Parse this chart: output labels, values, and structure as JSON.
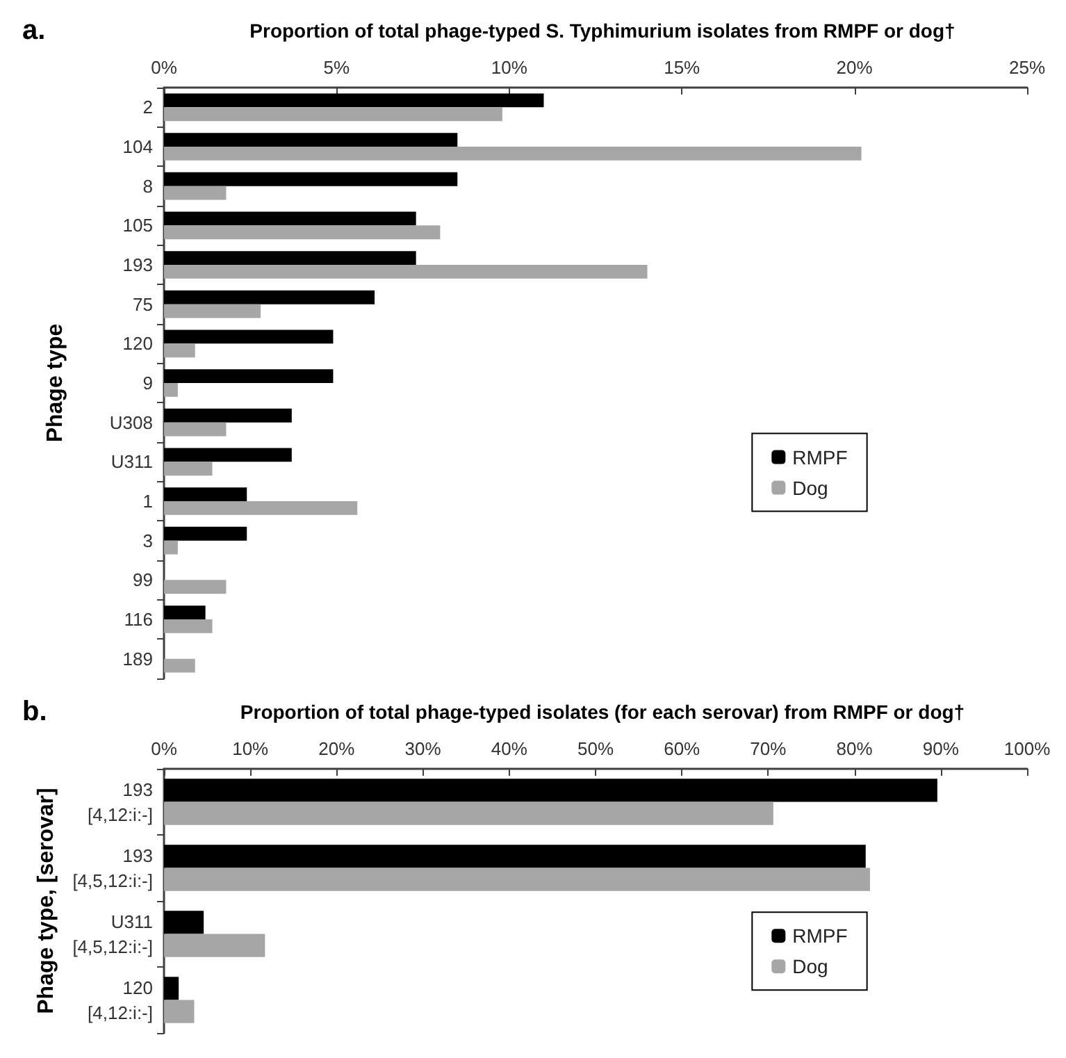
{
  "chart_data": [
    {
      "type": "bar",
      "orientation": "horizontal",
      "title": "Proportion of total phage-typed S. Typhimurium isolates from RMPF or dog†",
      "ylabel": "Phage type",
      "annotations": [
        "a."
      ],
      "categories": [
        "2",
        "104",
        "8",
        "105",
        "193",
        "75",
        "120",
        "9",
        "U308",
        "U311",
        "1",
        "3",
        "99",
        "116",
        "189"
      ],
      "series": [
        {
          "name": "RMPF",
          "color": "#000000",
          "values": [
            11.0,
            8.5,
            8.5,
            7.3,
            7.3,
            6.1,
            4.9,
            4.9,
            3.7,
            3.7,
            2.4,
            2.4,
            0,
            1.2,
            0
          ]
        },
        {
          "name": "Dog",
          "color": "#a6a6a6",
          "values": [
            9.8,
            20.2,
            1.8,
            8.0,
            14.0,
            2.8,
            0.9,
            0.4,
            1.8,
            1.4,
            5.6,
            0.4,
            1.8,
            1.4,
            0.9
          ]
        }
      ],
      "xlim": [
        0,
        25
      ],
      "xticks": [
        {
          "value": 0,
          "label": "0%"
        },
        {
          "value": 5,
          "label": "5%"
        },
        {
          "value": 10,
          "label": "10%"
        },
        {
          "value": 15,
          "label": "15%"
        },
        {
          "value": 20,
          "label": "20%"
        },
        {
          "value": 25,
          "label": "25%"
        }
      ],
      "grid": false,
      "legend": "right"
    },
    {
      "type": "bar",
      "orientation": "horizontal",
      "title": "Proportion of total phage-typed isolates (for each serovar) from RMPF or dog†",
      "ylabel": "Phage type, [serovar]",
      "annotations": [
        "b."
      ],
      "categories": [
        "193\n[4,12:i:-]",
        "193\n[4,5,12:i:-]",
        "U311\n[4,5,12:i:-]",
        "120\n[4,12:i:-]"
      ],
      "series": [
        {
          "name": "RMPF",
          "color": "#000000",
          "values": [
            89.6,
            81.3,
            4.6,
            1.7
          ]
        },
        {
          "name": "Dog",
          "color": "#a6a6a6",
          "values": [
            70.6,
            81.8,
            11.7,
            3.5
          ]
        }
      ],
      "xlim": [
        0,
        100
      ],
      "xticks": [
        {
          "value": 0,
          "label": "0%"
        },
        {
          "value": 10,
          "label": "10%"
        },
        {
          "value": 20,
          "label": "20%"
        },
        {
          "value": 30,
          "label": "30%"
        },
        {
          "value": 40,
          "label": "40%"
        },
        {
          "value": 50,
          "label": "50%"
        },
        {
          "value": 60,
          "label": "60%"
        },
        {
          "value": 70,
          "label": "70%"
        },
        {
          "value": 80,
          "label": "80%"
        },
        {
          "value": 90,
          "label": "90%"
        },
        {
          "value": 100,
          "label": "100%"
        }
      ],
      "grid": false,
      "legend": "right"
    }
  ]
}
